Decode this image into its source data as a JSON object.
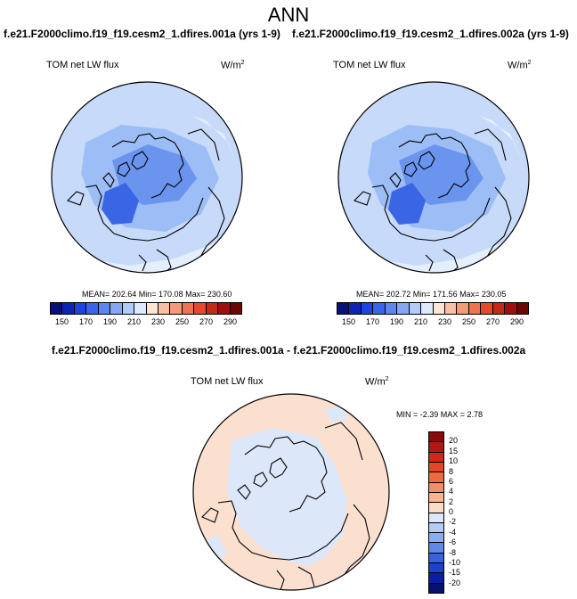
{
  "figure": {
    "title": "ANN",
    "case1": "f.e21.F2000climo.f19_f19.cesm2_1.dfires.001a (yrs 1-9)",
    "case2": "f.e21.F2000climo.f19_f19.cesm2_1.dfires.002a (yrs 1-9)",
    "diff_title": "f.e21.F2000climo.f19_f19.cesm2_1.dfires.001a - f.e21.F2000climo.f19_f19.cesm2_1.dfires.002a"
  },
  "panels": [
    {
      "variable": "TOM net LW flux",
      "units": "W/m",
      "units_sup": "2",
      "stats": "MEAN= 202.64  Min= 170.08  Max= 230.60"
    },
    {
      "variable": "TOM net LW flux",
      "units": "W/m",
      "units_sup": "2",
      "stats": "MEAN= 202.72  Min= 171.56  Max= 230.05"
    },
    {
      "variable": "TOM net LW flux",
      "units": "W/m",
      "units_sup": "2",
      "stats": "MIN =  -2.39 MAX =   2.78"
    }
  ],
  "colorbar_abs": {
    "ticks": [
      "150",
      "170",
      "190",
      "210",
      "230",
      "250",
      "270",
      "290"
    ],
    "colors": [
      "#08107a",
      "#0d24b8",
      "#1c45e0",
      "#3a64ec",
      "#5c86f0",
      "#86a8f4",
      "#b2cbf8",
      "#dde9fc",
      "#fce4d6",
      "#f7c0a4",
      "#f39a78",
      "#ef7252",
      "#e24a2e",
      "#c42a18",
      "#9c1010",
      "#6e0606"
    ]
  },
  "colorbar_diff": {
    "ticks": [
      "20",
      "15",
      "10",
      "8",
      "6",
      "4",
      "2",
      "0",
      "-2",
      "-4",
      "-6",
      "-8",
      "-10",
      "-15",
      "-20"
    ],
    "colors": [
      "#8a0a0a",
      "#b01818",
      "#d02818",
      "#e44628",
      "#ee6a44",
      "#f48e68",
      "#f8b494",
      "#fcdcc8",
      "#dce8fa",
      "#b4cbf4",
      "#8aacf0",
      "#5f88ea",
      "#3a62e0",
      "#1e40cc",
      "#0c1ea8",
      "#06106e"
    ]
  },
  "map_colors": {
    "ocean_base": "#c7dafa",
    "land_mid": "#9dbdf6",
    "high_core": "#6b94ef",
    "deep_core": "#3a66e6",
    "pale_edge": "#e5eefc",
    "warm_edge": "#fbdccb",
    "diff_pos": "#fbe0d0",
    "diff_neg": "#dce8fa"
  }
}
